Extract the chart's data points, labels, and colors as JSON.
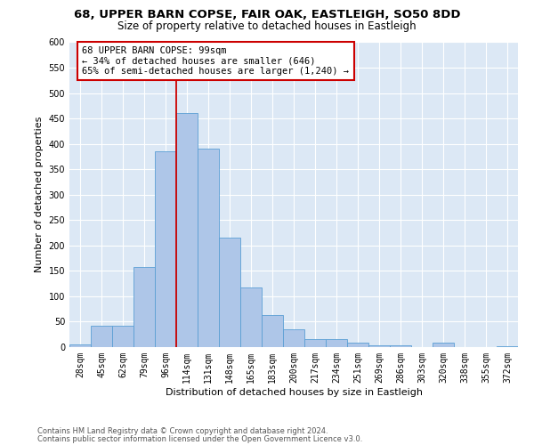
{
  "title1": "68, UPPER BARN COPSE, FAIR OAK, EASTLEIGH, SO50 8DD",
  "title2": "Size of property relative to detached houses in Eastleigh",
  "xlabel": "Distribution of detached houses by size in Eastleigh",
  "ylabel": "Number of detached properties",
  "bar_labels": [
    "28sqm",
    "45sqm",
    "62sqm",
    "79sqm",
    "96sqm",
    "114sqm",
    "131sqm",
    "148sqm",
    "165sqm",
    "183sqm",
    "200sqm",
    "217sqm",
    "234sqm",
    "251sqm",
    "269sqm",
    "286sqm",
    "303sqm",
    "320sqm",
    "338sqm",
    "355sqm",
    "372sqm"
  ],
  "bar_values": [
    5,
    42,
    42,
    158,
    385,
    460,
    390,
    215,
    118,
    63,
    35,
    15,
    15,
    8,
    3,
    3,
    0,
    8,
    0,
    0,
    2
  ],
  "bar_color": "#aec6e8",
  "bar_edge_color": "#5a9fd4",
  "vline_xindex": 4.5,
  "vline_color": "#cc0000",
  "annotation_text": "68 UPPER BARN COPSE: 99sqm\n← 34% of detached houses are smaller (646)\n65% of semi-detached houses are larger (1,240) →",
  "annotation_box_color": "#ffffff",
  "annotation_box_edge": "#cc0000",
  "ylim_max": 600,
  "yticks": [
    0,
    50,
    100,
    150,
    200,
    250,
    300,
    350,
    400,
    450,
    500,
    550,
    600
  ],
  "bg_color": "#dce8f5",
  "footer1": "Contains HM Land Registry data © Crown copyright and database right 2024.",
  "footer2": "Contains public sector information licensed under the Open Government Licence v3.0.",
  "title1_fontsize": 9.5,
  "title2_fontsize": 8.5,
  "xlabel_fontsize": 8,
  "ylabel_fontsize": 8,
  "tick_fontsize": 7,
  "annotation_fontsize": 7.5,
  "footer_fontsize": 6
}
